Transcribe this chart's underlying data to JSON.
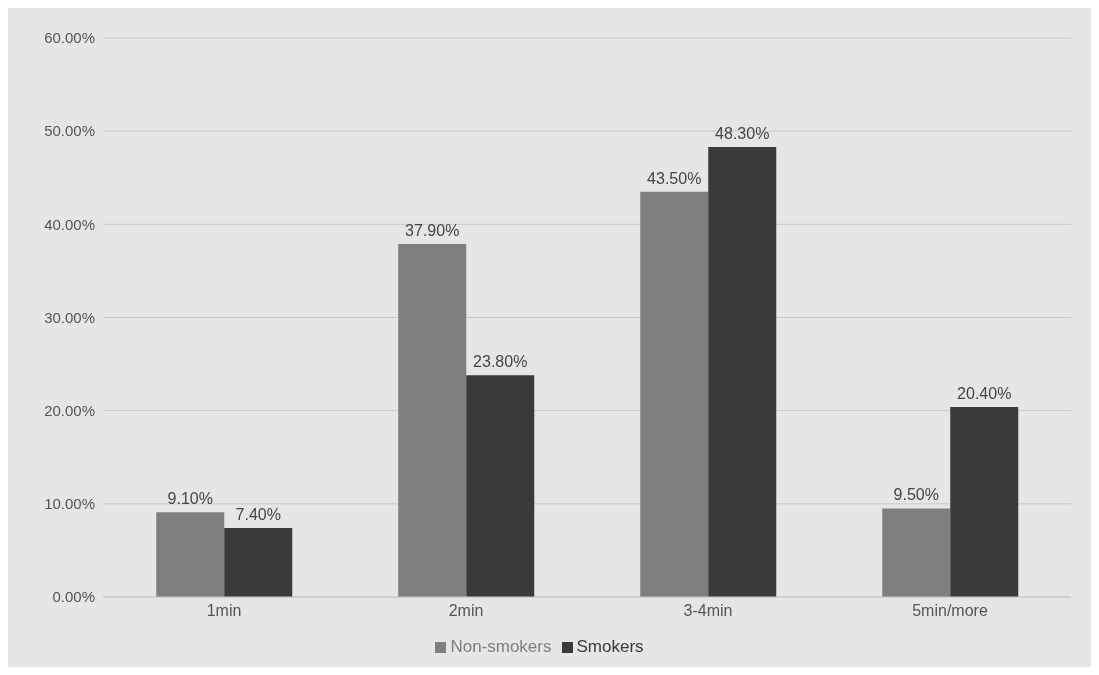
{
  "chart_data": {
    "type": "bar",
    "categories": [
      "1min",
      "2min",
      "3-4min",
      "5min/more"
    ],
    "series": [
      {
        "name": "Non-smokers",
        "color": "#7f7f7f",
        "values": [
          9.1,
          37.9,
          43.5,
          9.5
        ],
        "value_labels": [
          "9.10%",
          "37.90%",
          "43.50%",
          "9.50%"
        ]
      },
      {
        "name": "Smokers",
        "color": "#3a3a3a",
        "values": [
          7.4,
          23.8,
          48.3,
          20.4
        ],
        "value_labels": [
          "7.40%",
          "23.80%",
          "48.30%",
          "20.40%"
        ]
      }
    ],
    "ylim": [
      0,
      60
    ],
    "yticks": [
      {
        "value": 0,
        "label": "0.00%"
      },
      {
        "value": 10,
        "label": "10.00%"
      },
      {
        "value": 20,
        "label": "20.00%"
      },
      {
        "value": 30,
        "label": "30.00%"
      },
      {
        "value": 40,
        "label": "40.00%"
      },
      {
        "value": 50,
        "label": "50.00%"
      },
      {
        "value": 60,
        "label": "60.00%"
      }
    ],
    "grid": "y",
    "legend": "bottom"
  }
}
